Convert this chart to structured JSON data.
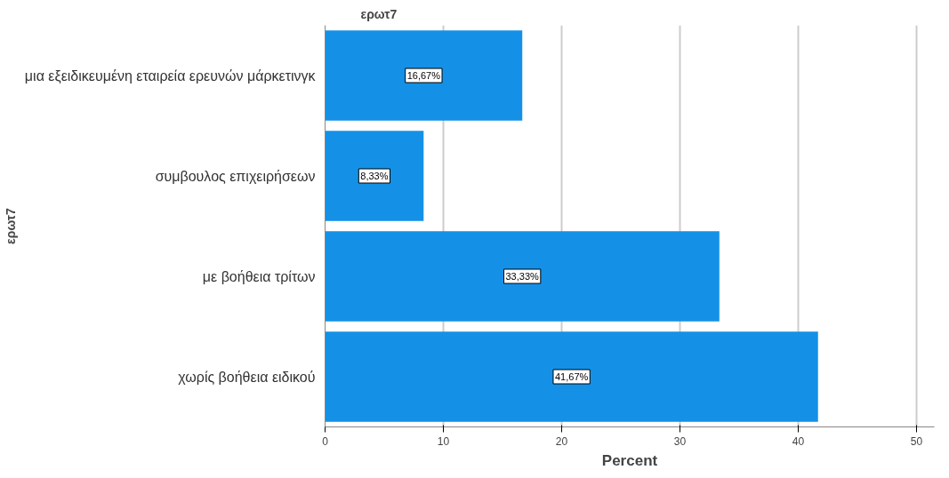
{
  "chart_data": {
    "type": "bar",
    "orientation": "horizontal",
    "title": "ερωτ7",
    "xlabel": "Percent",
    "ylabel": "ερωτ7",
    "categories": [
      "μια εξειδικευμένη εταιρεία ερευνών μάρκετινγκ",
      "συμβουλος επιχειρήσεων",
      "με βοήθεια τρίτων",
      "χωρίς βοήθεια ειδικού"
    ],
    "values": [
      16.67,
      8.33,
      33.33,
      41.67
    ],
    "value_labels": [
      "16,67%",
      "8,33%",
      "33,33%",
      "41,67%"
    ],
    "color": "#1491e6",
    "xlim": [
      0,
      51.5
    ],
    "xticks": [
      0,
      10,
      20,
      30,
      40,
      50
    ],
    "grid": "x"
  }
}
